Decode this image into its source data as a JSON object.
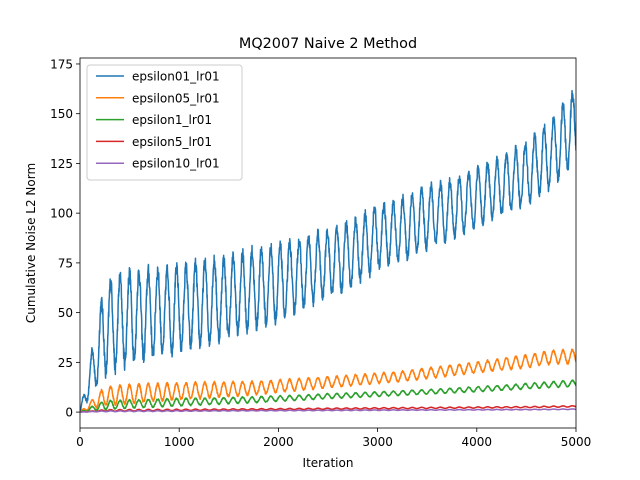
{
  "chart_data": {
    "type": "line",
    "title": "MQ2007 Naive 2 Method",
    "xlabel": "Iteration",
    "ylabel": "Cumulative Noise L2 Norm",
    "xlim": [
      0,
      5000
    ],
    "ylim": [
      -8,
      178
    ],
    "xticks": [
      0,
      1000,
      2000,
      3000,
      4000,
      5000
    ],
    "yticks": [
      0,
      25,
      50,
      75,
      100,
      125,
      150,
      175
    ],
    "grid": false,
    "legend_position": "upper-left",
    "x": [
      0,
      250,
      500,
      750,
      1000,
      1250,
      1500,
      1750,
      2000,
      2250,
      2500,
      2750,
      3000,
      3250,
      3500,
      3750,
      4000,
      4250,
      4500,
      4750,
      5000
    ],
    "series": [
      {
        "name": "epsilon01_lr01",
        "color": "#1f77b4",
        "trend": [
          0,
          42,
          48,
          50,
          52,
          55,
          58,
          62,
          65,
          70,
          75,
          80,
          88,
          92,
          98,
          102,
          108,
          114,
          120,
          130,
          145
        ],
        "osc_amplitude": [
          0,
          22,
          22,
          21,
          20,
          20,
          19,
          19,
          18,
          17,
          16,
          16,
          15,
          15,
          15,
          14,
          14,
          14,
          15,
          16,
          18
        ],
        "osc_period": 95
      },
      {
        "name": "epsilon05_lr01",
        "color": "#ff7f0e",
        "trend": [
          0,
          8,
          9,
          10,
          10.5,
          11,
          11.5,
          12,
          13,
          14,
          15,
          16,
          17,
          18,
          19.5,
          21,
          22.5,
          24,
          25.5,
          27.5,
          28
        ],
        "osc_amplitude": [
          0,
          4.5,
          4.5,
          4.2,
          4.0,
          3.8,
          3.5,
          3.2,
          3.0,
          2.8,
          2.6,
          2.5,
          2.4,
          2.4,
          2.5,
          2.5,
          2.6,
          2.8,
          3.0,
          3.2,
          3.4
        ],
        "osc_period": 95
      },
      {
        "name": "epsilon1_lr01",
        "color": "#2ca02c",
        "trend": [
          0,
          3.5,
          4,
          4.5,
          5,
          5.3,
          5.8,
          6.2,
          6.8,
          7.3,
          8,
          8.5,
          9,
          9.6,
          10.2,
          10.8,
          11.5,
          12.2,
          13,
          13.8,
          14.5
        ],
        "osc_amplitude": [
          0,
          2.2,
          2.0,
          1.9,
          1.8,
          1.6,
          1.5,
          1.4,
          1.3,
          1.2,
          1.2,
          1.1,
          1.1,
          1.1,
          1.1,
          1.1,
          1.2,
          1.2,
          1.3,
          1.4,
          1.5
        ],
        "osc_period": 95
      },
      {
        "name": "epsilon5_lr01",
        "color": "#d62728",
        "trend": [
          0,
          0.8,
          0.9,
          1.0,
          1.1,
          1.2,
          1.3,
          1.4,
          1.5,
          1.6,
          1.7,
          1.8,
          1.9,
          2.0,
          2.1,
          2.2,
          2.3,
          2.4,
          2.5,
          2.7,
          2.9
        ],
        "osc_amplitude": [
          0,
          0.4,
          0.4,
          0.35,
          0.35,
          0.3,
          0.3,
          0.3,
          0.3,
          0.3,
          0.3,
          0.3,
          0.3,
          0.3,
          0.3,
          0.3,
          0.3,
          0.3,
          0.3,
          0.3,
          0.3
        ],
        "osc_period": 95
      },
      {
        "name": "epsilon10_lr01",
        "color": "#9467bd",
        "trend": [
          0,
          0.4,
          0.45,
          0.5,
          0.55,
          0.6,
          0.65,
          0.7,
          0.75,
          0.8,
          0.85,
          0.9,
          0.95,
          1.0,
          1.05,
          1.1,
          1.15,
          1.2,
          1.25,
          1.35,
          1.45
        ],
        "osc_amplitude": [
          0,
          0.2,
          0.2,
          0.2,
          0.2,
          0.15,
          0.15,
          0.15,
          0.15,
          0.15,
          0.15,
          0.15,
          0.15,
          0.15,
          0.15,
          0.15,
          0.15,
          0.15,
          0.15,
          0.15,
          0.15
        ],
        "osc_period": 95
      }
    ]
  }
}
